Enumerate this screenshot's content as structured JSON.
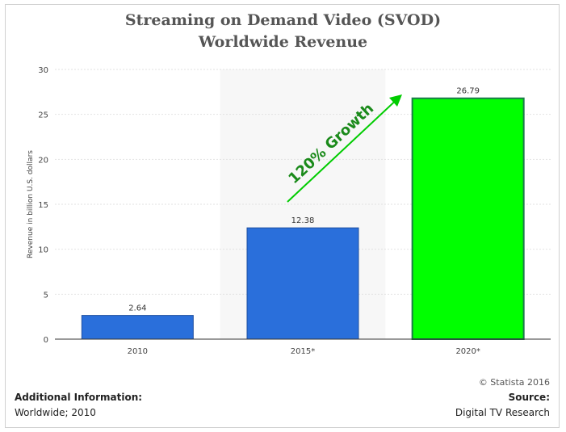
{
  "title_line1": "Streaming on Demand Video (SVOD)",
  "title_line2": "Worldwide Revenue",
  "chart_data": {
    "type": "bar",
    "categories": [
      "2010",
      "2015*",
      "2020*"
    ],
    "values": [
      2.64,
      12.38,
      26.79
    ],
    "value_labels": [
      "2.64",
      "12.38",
      "26.79"
    ],
    "ylabel": "Revenue in billion U.S. dollars",
    "xlabel": "",
    "ylim": [
      0,
      30
    ],
    "yticks": [
      0,
      5,
      10,
      15,
      20,
      25,
      30
    ],
    "grid": true,
    "bar_colors": [
      "#2a6fdb",
      "#2a6fdb",
      "#00ff00"
    ],
    "highlight_band_category": "2015*",
    "annotation": "120% Growth",
    "annotation_color": "#1a8a1a",
    "arrow_color": "#00cc00"
  },
  "footer": {
    "copyright": "© Statista 2016",
    "additional_label": "Additional Information:",
    "additional_value": "Worldwide; 2010",
    "source_label": "Source:",
    "source_value": "Digital TV Research"
  }
}
